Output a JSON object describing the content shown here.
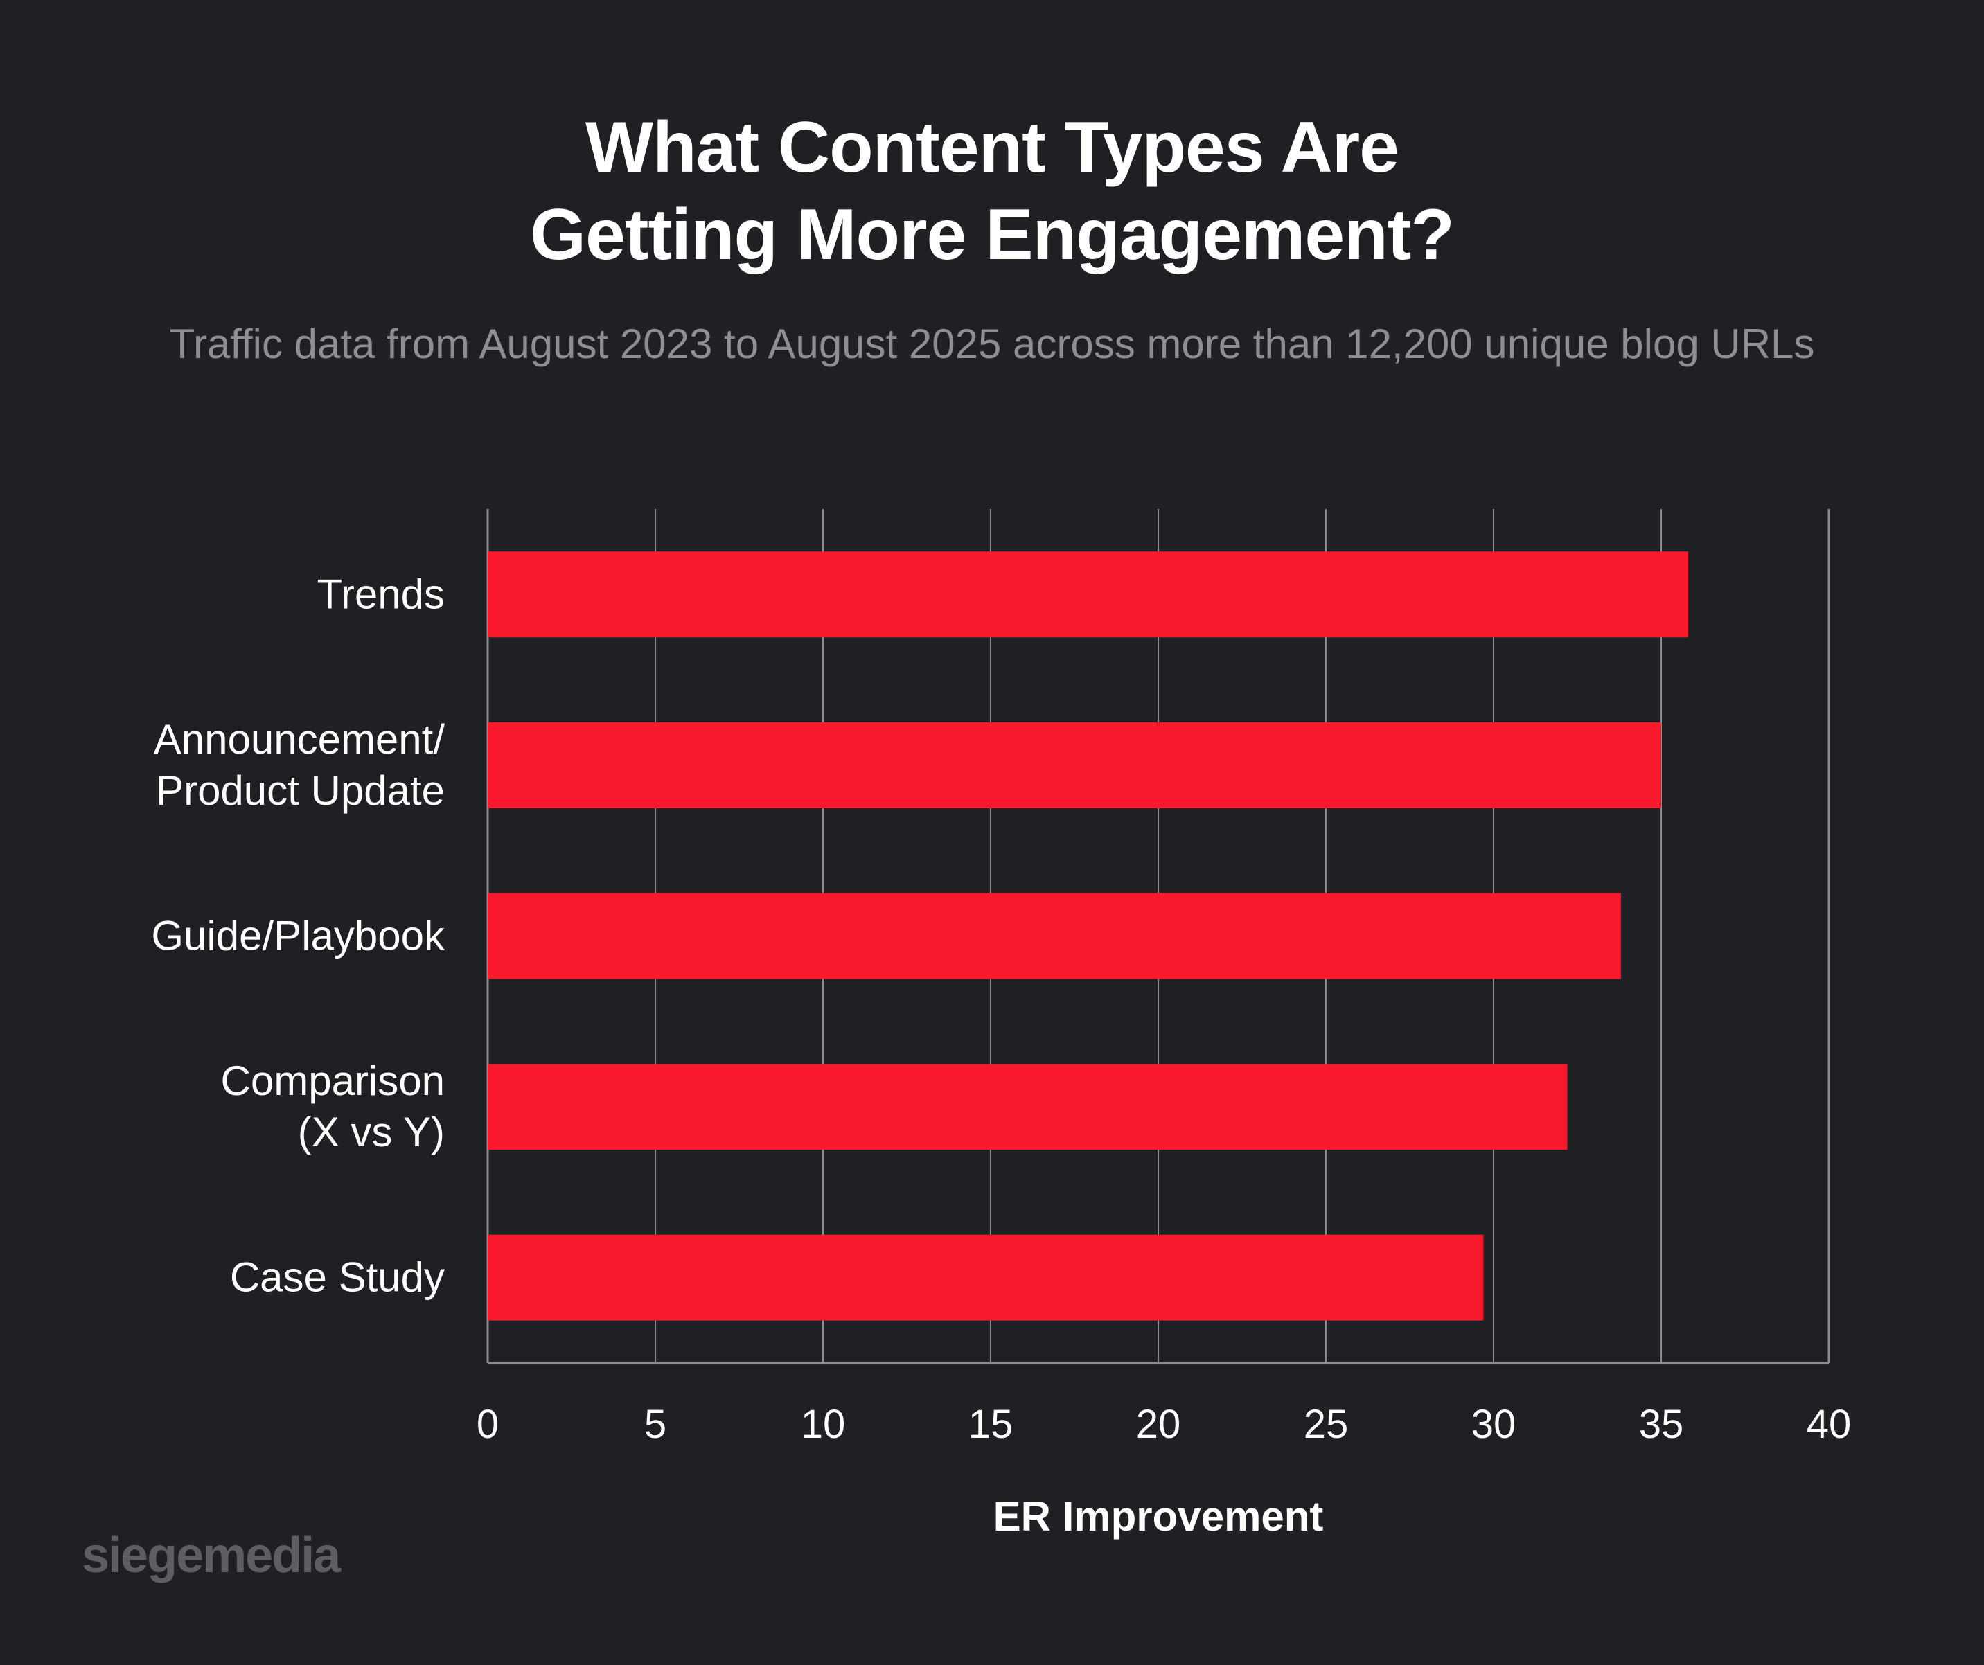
{
  "header": {
    "title_line1": "What Content Types Are",
    "title_line2": "Getting More Engagement?",
    "subtitle": "Traffic data from August 2023 to August 2025 across more than 12,200 unique blog URLs"
  },
  "brand": {
    "logo_text": "siegemedia"
  },
  "colors": {
    "bar": "#fa192c",
    "background": "#1e2023",
    "grid": "#8a8c90"
  },
  "chart_data": {
    "type": "bar",
    "orientation": "horizontal",
    "categories": [
      [
        "Trends"
      ],
      [
        "Announcement/",
        "Product Update"
      ],
      [
        "Guide/Playbook"
      ],
      [
        "Comparison",
        "(X vs Y)"
      ],
      [
        "Case Study"
      ]
    ],
    "values": [
      35.8,
      35.0,
      33.8,
      32.2,
      29.7
    ],
    "xlabel": "ER Improvement",
    "ylabel": "",
    "xlim": [
      0,
      40
    ],
    "xticks": [
      0,
      5,
      10,
      15,
      20,
      25,
      30,
      35,
      40
    ],
    "grid": true
  }
}
